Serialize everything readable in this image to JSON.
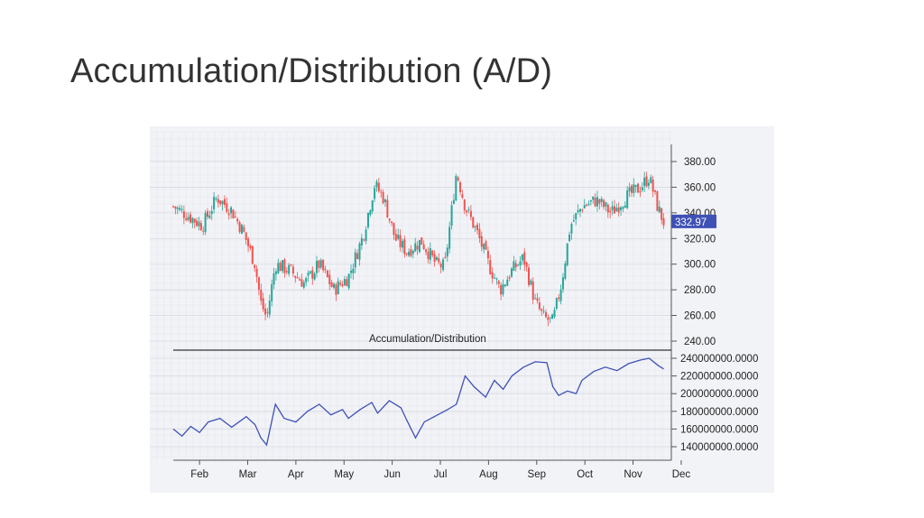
{
  "slide": {
    "title": "Accumulation/Distribution (A/D)"
  },
  "chart_data": [
    {
      "type": "candlestick",
      "title": "",
      "ylim": [
        240,
        380
      ],
      "y_ticks": [
        "380.00",
        "360.00",
        "340.00",
        "320.00",
        "300.00",
        "280.00",
        "260.00",
        "240.00"
      ],
      "last_price_label": "332.97",
      "last_price": 332.97,
      "up_color": "#26a69a",
      "down_color": "#ef5350",
      "grid": true,
      "x": [
        "Feb",
        "Mar",
        "Apr",
        "May",
        "Jun",
        "Jul",
        "Aug",
        "Sep",
        "Oct",
        "Nov",
        "Dec"
      ],
      "close_path": [
        [
          0.0,
          345
        ],
        [
          0.5,
          338
        ],
        [
          1.0,
          330
        ],
        [
          1.5,
          352
        ],
        [
          2.0,
          342
        ],
        [
          2.4,
          325
        ],
        [
          2.8,
          300
        ],
        [
          3.0,
          270
        ],
        [
          3.2,
          258
        ],
        [
          3.5,
          300
        ],
        [
          4.0,
          295
        ],
        [
          4.5,
          285
        ],
        [
          5.0,
          300
        ],
        [
          5.5,
          280
        ],
        [
          6.0,
          290
        ],
        [
          6.5,
          322
        ],
        [
          6.9,
          362
        ],
        [
          7.2,
          352
        ],
        [
          7.6,
          320
        ],
        [
          8.0,
          310
        ],
        [
          8.5,
          318
        ],
        [
          9.0,
          300
        ],
        [
          9.3,
          298
        ],
        [
          9.7,
          372
        ],
        [
          10.0,
          345
        ],
        [
          10.4,
          325
        ],
        [
          10.8,
          300
        ],
        [
          11.2,
          280
        ],
        [
          11.6,
          295
        ],
        [
          12.0,
          305
        ],
        [
          12.4,
          270
        ],
        [
          12.7,
          258
        ],
        [
          13.0,
          255
        ],
        [
          13.3,
          285
        ],
        [
          13.6,
          330
        ],
        [
          14.0,
          345
        ],
        [
          14.5,
          350
        ],
        [
          15.0,
          340
        ],
        [
          15.5,
          352
        ],
        [
          16.0,
          360
        ],
        [
          16.3,
          368
        ],
        [
          16.6,
          344
        ],
        [
          16.8,
          332.97
        ]
      ]
    },
    {
      "type": "line",
      "title": "Accumulation/Distribution",
      "ylim": [
        130000000,
        250000000
      ],
      "y_ticks": [
        "240000000.0000",
        "220000000.0000",
        "200000000.0000",
        "180000000.0000",
        "160000000.0000",
        "140000000.0000"
      ],
      "line_color": "#3f51b5",
      "grid": true,
      "x": [
        "Feb",
        "Mar",
        "Apr",
        "May",
        "Jun",
        "Jul",
        "Aug",
        "Sep",
        "Oct",
        "Nov",
        "Dec"
      ],
      "values_path": [
        [
          0.0,
          160000000
        ],
        [
          0.3,
          152000000
        ],
        [
          0.6,
          163000000
        ],
        [
          0.9,
          156000000
        ],
        [
          1.2,
          168000000
        ],
        [
          1.6,
          172000000
        ],
        [
          2.0,
          162000000
        ],
        [
          2.5,
          174000000
        ],
        [
          2.8,
          165000000
        ],
        [
          3.0,
          150000000
        ],
        [
          3.2,
          142000000
        ],
        [
          3.5,
          188000000
        ],
        [
          3.8,
          172000000
        ],
        [
          4.2,
          168000000
        ],
        [
          4.6,
          180000000
        ],
        [
          5.0,
          188000000
        ],
        [
          5.4,
          176000000
        ],
        [
          5.8,
          182000000
        ],
        [
          6.0,
          172000000
        ],
        [
          6.4,
          182000000
        ],
        [
          6.8,
          190000000
        ],
        [
          7.0,
          178000000
        ],
        [
          7.4,
          192000000
        ],
        [
          7.8,
          184000000
        ],
        [
          8.0,
          170000000
        ],
        [
          8.3,
          150000000
        ],
        [
          8.6,
          168000000
        ],
        [
          9.0,
          175000000
        ],
        [
          9.4,
          182000000
        ],
        [
          9.7,
          188000000
        ],
        [
          10.0,
          220000000
        ],
        [
          10.3,
          208000000
        ],
        [
          10.7,
          196000000
        ],
        [
          11.0,
          215000000
        ],
        [
          11.3,
          205000000
        ],
        [
          11.6,
          220000000
        ],
        [
          12.0,
          230000000
        ],
        [
          12.4,
          236000000
        ],
        [
          12.8,
          235000000
        ],
        [
          13.0,
          208000000
        ],
        [
          13.2,
          198000000
        ],
        [
          13.5,
          203000000
        ],
        [
          13.8,
          200000000
        ],
        [
          14.0,
          215000000
        ],
        [
          14.4,
          225000000
        ],
        [
          14.8,
          230000000
        ],
        [
          15.2,
          226000000
        ],
        [
          15.6,
          234000000
        ],
        [
          16.0,
          238000000
        ],
        [
          16.3,
          240000000
        ],
        [
          16.6,
          232000000
        ],
        [
          16.8,
          228000000
        ]
      ]
    }
  ]
}
